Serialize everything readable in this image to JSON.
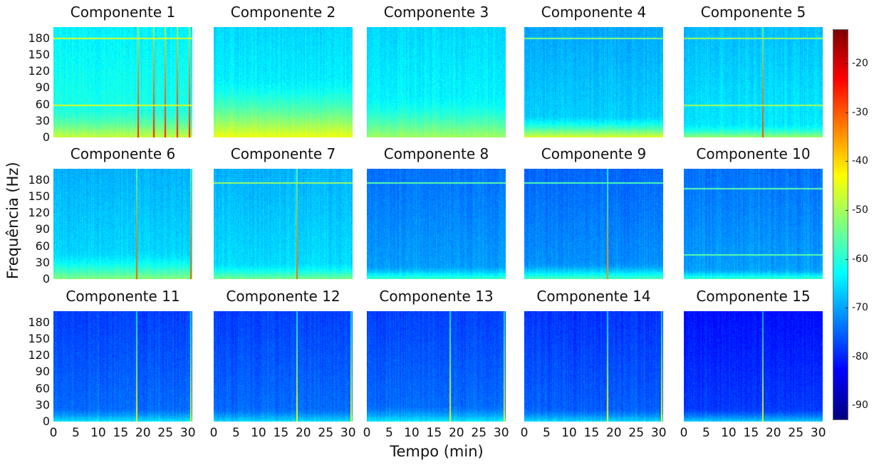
{
  "chart_data": {
    "type": "heatmap",
    "title": "",
    "xlabel": "Tempo (min)",
    "ylabel": "Frequência (Hz)",
    "x_ticks": [
      "0",
      "5",
      "10",
      "15",
      "20",
      "25",
      "30"
    ],
    "y_ticks": [
      "0",
      "30",
      "60",
      "90",
      "120",
      "150",
      "180"
    ],
    "xlim": [
      0,
      31
    ],
    "ylim": [
      0,
      200
    ],
    "colorbar": {
      "ticks": [
        "-20",
        "-30",
        "-40",
        "-50",
        "-60",
        "-70",
        "-80",
        "-90"
      ],
      "range": [
        -93,
        -13
      ],
      "colormap": "jet"
    },
    "panels": [
      {
        "name": "Componente 1",
        "base_db": -60,
        "low_db": -47,
        "low_hz": 55,
        "vlines_min": [
          18.8,
          22.2,
          24.8,
          27.5,
          30.2
        ],
        "hlines_hz": [
          60,
          180
        ]
      },
      {
        "name": "Componente 2",
        "base_db": -62,
        "low_db": -44,
        "low_hz": 110,
        "vlines_min": [],
        "hlines_hz": []
      },
      {
        "name": "Componente 3",
        "base_db": -62,
        "low_db": -50,
        "low_hz": 75,
        "vlines_min": [],
        "hlines_hz": []
      },
      {
        "name": "Componente 4",
        "base_db": -66,
        "low_db": -45,
        "low_hz": 40,
        "vlines_min": [],
        "hlines_hz": [
          180
        ]
      },
      {
        "name": "Componente 5",
        "base_db": -64,
        "low_db": -50,
        "low_hz": 25,
        "vlines_min": [
          17.5
        ],
        "hlines_hz": [
          60,
          180
        ]
      },
      {
        "name": "Componente 6",
        "base_db": -65,
        "low_db": -52,
        "low_hz": 50,
        "vlines_min": [
          18.5,
          30.5
        ],
        "hlines_hz": []
      },
      {
        "name": "Componente 7",
        "base_db": -65,
        "low_db": -53,
        "low_hz": 30,
        "vlines_min": [
          18.5
        ],
        "hlines_hz": [
          175
        ]
      },
      {
        "name": "Componente 8",
        "base_db": -70,
        "low_db": -57,
        "low_hz": 25,
        "vlines_min": [],
        "hlines_hz": [
          175
        ]
      },
      {
        "name": "Componente 9",
        "base_db": -71,
        "low_db": -56,
        "low_hz": 30,
        "vlines_min": [
          18.5
        ],
        "hlines_hz": [
          175
        ]
      },
      {
        "name": "Componente 10",
        "base_db": -70,
        "low_db": -57,
        "low_hz": 20,
        "vlines_min": [],
        "hlines_hz": [
          45,
          165
        ]
      },
      {
        "name": "Componente 11",
        "base_db": -74,
        "low_db": -64,
        "low_hz": 25,
        "vlines_min": [
          18.5,
          30.5
        ],
        "hlines_hz": []
      },
      {
        "name": "Componente 12",
        "base_db": -74,
        "low_db": -65,
        "low_hz": 25,
        "vlines_min": [
          18.5,
          30.5
        ],
        "hlines_hz": []
      },
      {
        "name": "Componente 13",
        "base_db": -74,
        "low_db": -64,
        "low_hz": 30,
        "vlines_min": [
          18.5,
          30.5
        ],
        "hlines_hz": []
      },
      {
        "name": "Componente 14",
        "base_db": -75,
        "low_db": -65,
        "low_hz": 25,
        "vlines_min": [
          18.5,
          30.5
        ],
        "hlines_hz": []
      },
      {
        "name": "Componente 15",
        "base_db": -78,
        "low_db": -66,
        "low_hz": 25,
        "vlines_min": [
          17.5
        ],
        "hlines_hz": []
      }
    ]
  }
}
